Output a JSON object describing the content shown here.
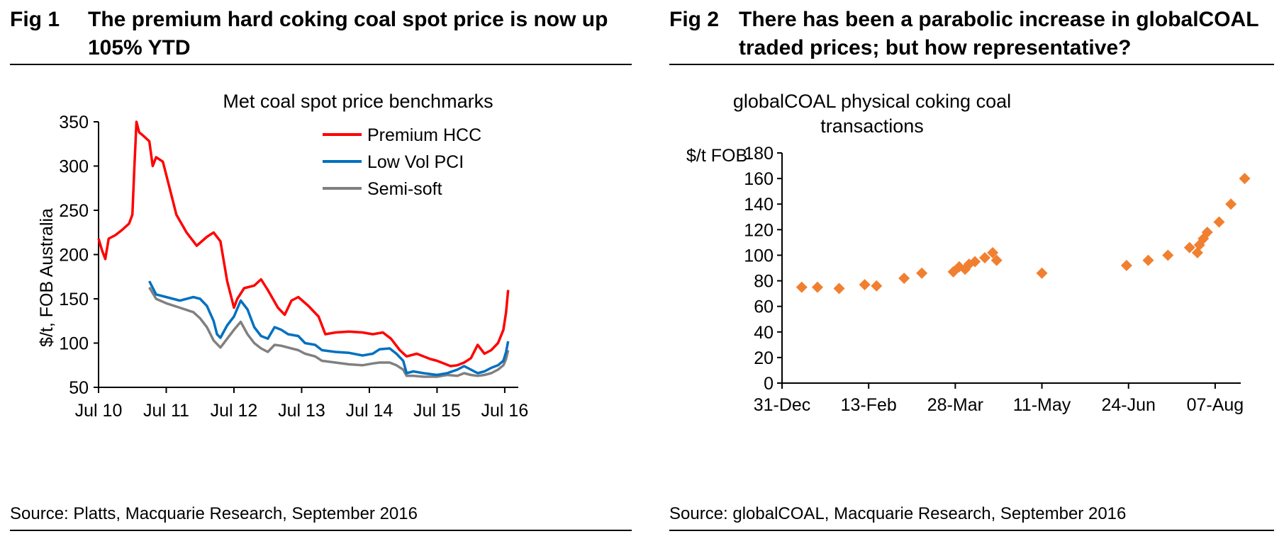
{
  "fig1": {
    "label": "Fig 1",
    "title": "The premium hard coking coal spot price is now up 105% YTD",
    "source": "Source: Platts, Macquarie Research, September 2016"
  },
  "fig2": {
    "label": "Fig 2",
    "title": "There has been a parabolic increase in globalCOAL traded prices; but how representative?",
    "source": "Source: globalCOAL, Macquarie Research, September 2016"
  },
  "colors": {
    "premium_hcc": "#ff0000",
    "low_vol_pci": "#0070c0",
    "semi_soft": "#808080",
    "scatter": "#f08030"
  },
  "chart_data": [
    {
      "type": "line",
      "title": "Met coal spot price benchmarks",
      "xlabel": "",
      "ylabel": "$/t, FOB Australia",
      "ylim": [
        50,
        350
      ],
      "yticks": [
        50,
        100,
        150,
        200,
        250,
        300,
        350
      ],
      "xlim": [
        2010.5,
        2016.7
      ],
      "xticks": [
        {
          "value": 2010.5,
          "label": "Jul 10"
        },
        {
          "value": 2011.5,
          "label": "Jul 11"
        },
        {
          "value": 2012.5,
          "label": "Jul 12"
        },
        {
          "value": 2013.5,
          "label": "Jul 13"
        },
        {
          "value": 2014.5,
          "label": "Jul 14"
        },
        {
          "value": 2015.5,
          "label": "Jul 15"
        },
        {
          "value": 2016.5,
          "label": "Jul 16"
        }
      ],
      "legend_position": "top-right",
      "series": [
        {
          "name": "Premium HCC",
          "points": [
            [
              2010.5,
              218
            ],
            [
              2010.55,
              205
            ],
            [
              2010.6,
              195
            ],
            [
              2010.65,
              218
            ],
            [
              2010.75,
              222
            ],
            [
              2010.85,
              228
            ],
            [
              2010.95,
              235
            ],
            [
              2011.0,
              245
            ],
            [
              2011.03,
              300
            ],
            [
              2011.06,
              350
            ],
            [
              2011.1,
              338
            ],
            [
              2011.15,
              335
            ],
            [
              2011.25,
              328
            ],
            [
              2011.3,
              300
            ],
            [
              2011.35,
              310
            ],
            [
              2011.45,
              305
            ],
            [
              2011.55,
              275
            ],
            [
              2011.65,
              245
            ],
            [
              2011.8,
              225
            ],
            [
              2011.95,
              210
            ],
            [
              2012.1,
              220
            ],
            [
              2012.2,
              225
            ],
            [
              2012.3,
              215
            ],
            [
              2012.4,
              170
            ],
            [
              2012.5,
              140
            ],
            [
              2012.55,
              150
            ],
            [
              2012.65,
              162
            ],
            [
              2012.8,
              165
            ],
            [
              2012.9,
              172
            ],
            [
              2013.0,
              160
            ],
            [
              2013.15,
              140
            ],
            [
              2013.25,
              132
            ],
            [
              2013.35,
              148
            ],
            [
              2013.45,
              152
            ],
            [
              2013.6,
              142
            ],
            [
              2013.75,
              130
            ],
            [
              2013.85,
              110
            ],
            [
              2014.0,
              112
            ],
            [
              2014.2,
              113
            ],
            [
              2014.4,
              112
            ],
            [
              2014.55,
              110
            ],
            [
              2014.7,
              112
            ],
            [
              2014.82,
              105
            ],
            [
              2014.95,
              92
            ],
            [
              2015.05,
              85
            ],
            [
              2015.2,
              88
            ],
            [
              2015.4,
              82
            ],
            [
              2015.5,
              80
            ],
            [
              2015.6,
              77
            ],
            [
              2015.7,
              74
            ],
            [
              2015.8,
              75
            ],
            [
              2015.9,
              78
            ],
            [
              2016.0,
              83
            ],
            [
              2016.1,
              98
            ],
            [
              2016.2,
              88
            ],
            [
              2016.3,
              92
            ],
            [
              2016.4,
              100
            ],
            [
              2016.48,
              115
            ],
            [
              2016.52,
              135
            ],
            [
              2016.55,
              160
            ]
          ]
        },
        {
          "name": "Low Vol PCI",
          "points": [
            [
              2011.25,
              170
            ],
            [
              2011.35,
              155
            ],
            [
              2011.5,
              152
            ],
            [
              2011.7,
              148
            ],
            [
              2011.9,
              152
            ],
            [
              2012.0,
              150
            ],
            [
              2012.1,
              142
            ],
            [
              2012.2,
              125
            ],
            [
              2012.25,
              110
            ],
            [
              2012.3,
              106
            ],
            [
              2012.4,
              120
            ],
            [
              2012.5,
              130
            ],
            [
              2012.6,
              148
            ],
            [
              2012.7,
              138
            ],
            [
              2012.8,
              118
            ],
            [
              2012.9,
              108
            ],
            [
              2013.0,
              105
            ],
            [
              2013.1,
              118
            ],
            [
              2013.2,
              115
            ],
            [
              2013.3,
              110
            ],
            [
              2013.45,
              108
            ],
            [
              2013.55,
              100
            ],
            [
              2013.7,
              98
            ],
            [
              2013.8,
              92
            ],
            [
              2014.0,
              90
            ],
            [
              2014.2,
              89
            ],
            [
              2014.4,
              86
            ],
            [
              2014.55,
              88
            ],
            [
              2014.65,
              93
            ],
            [
              2014.8,
              94
            ],
            [
              2014.9,
              88
            ],
            [
              2015.0,
              80
            ],
            [
              2015.05,
              66
            ],
            [
              2015.15,
              68
            ],
            [
              2015.3,
              66
            ],
            [
              2015.5,
              64
            ],
            [
              2015.65,
              66
            ],
            [
              2015.8,
              70
            ],
            [
              2015.9,
              74
            ],
            [
              2016.0,
              70
            ],
            [
              2016.1,
              66
            ],
            [
              2016.2,
              68
            ],
            [
              2016.3,
              72
            ],
            [
              2016.4,
              75
            ],
            [
              2016.48,
              80
            ],
            [
              2016.52,
              90
            ],
            [
              2016.55,
              102
            ]
          ]
        },
        {
          "name": "Semi-soft",
          "points": [
            [
              2011.25,
              163
            ],
            [
              2011.35,
              150
            ],
            [
              2011.5,
              145
            ],
            [
              2011.7,
              140
            ],
            [
              2011.9,
              135
            ],
            [
              2012.0,
              128
            ],
            [
              2012.1,
              118
            ],
            [
              2012.2,
              103
            ],
            [
              2012.3,
              95
            ],
            [
              2012.4,
              105
            ],
            [
              2012.5,
              115
            ],
            [
              2012.6,
              124
            ],
            [
              2012.7,
              110
            ],
            [
              2012.8,
              100
            ],
            [
              2012.9,
              94
            ],
            [
              2013.0,
              90
            ],
            [
              2013.1,
              98
            ],
            [
              2013.2,
              97
            ],
            [
              2013.3,
              95
            ],
            [
              2013.45,
              92
            ],
            [
              2013.55,
              88
            ],
            [
              2013.7,
              85
            ],
            [
              2013.8,
              80
            ],
            [
              2014.0,
              78
            ],
            [
              2014.2,
              76
            ],
            [
              2014.4,
              75
            ],
            [
              2014.55,
              77
            ],
            [
              2014.65,
              78
            ],
            [
              2014.8,
              78
            ],
            [
              2014.9,
              75
            ],
            [
              2015.0,
              70
            ],
            [
              2015.05,
              63
            ],
            [
              2015.15,
              63
            ],
            [
              2015.3,
              62
            ],
            [
              2015.5,
              62
            ],
            [
              2015.65,
              64
            ],
            [
              2015.8,
              63
            ],
            [
              2015.9,
              66
            ],
            [
              2016.0,
              64
            ],
            [
              2016.1,
              63
            ],
            [
              2016.2,
              64
            ],
            [
              2016.3,
              66
            ],
            [
              2016.4,
              70
            ],
            [
              2016.48,
              75
            ],
            [
              2016.52,
              82
            ],
            [
              2016.55,
              92
            ]
          ]
        }
      ]
    },
    {
      "type": "scatter",
      "title": "globalCOAL physical coking coal transactions",
      "title_lines": [
        "globalCOAL physical coking coal",
        "transactions"
      ],
      "xlabel": "",
      "ylabel": "$/t FOB",
      "ylim": [
        0,
        180
      ],
      "yticks": [
        0,
        20,
        40,
        60,
        80,
        100,
        120,
        140,
        160,
        180
      ],
      "xlim": [
        0,
        233
      ],
      "xticks": [
        {
          "value": 0,
          "label": "31-Dec"
        },
        {
          "value": 44,
          "label": "13-Feb"
        },
        {
          "value": 88,
          "label": "28-Mar"
        },
        {
          "value": 132,
          "label": "11-May"
        },
        {
          "value": 176,
          "label": "24-Jun"
        },
        {
          "value": 220,
          "label": "07-Aug"
        }
      ],
      "series": [
        {
          "name": "Transactions",
          "points": [
            [
              10,
              75
            ],
            [
              18,
              75
            ],
            [
              29,
              74
            ],
            [
              42,
              77
            ],
            [
              48,
              76
            ],
            [
              62,
              82
            ],
            [
              71,
              86
            ],
            [
              87,
              87
            ],
            [
              90,
              91
            ],
            [
              93,
              89
            ],
            [
              95,
              93
            ],
            [
              98,
              95
            ],
            [
              103,
              98
            ],
            [
              107,
              102
            ],
            [
              109,
              96
            ],
            [
              132,
              86
            ],
            [
              175,
              92
            ],
            [
              186,
              96
            ],
            [
              196,
              100
            ],
            [
              207,
              106
            ],
            [
              211,
              102
            ],
            [
              212,
              108
            ],
            [
              214,
              113
            ],
            [
              216,
              118
            ],
            [
              222,
              126
            ],
            [
              228,
              140
            ],
            [
              235,
              160
            ]
          ]
        }
      ]
    }
  ]
}
